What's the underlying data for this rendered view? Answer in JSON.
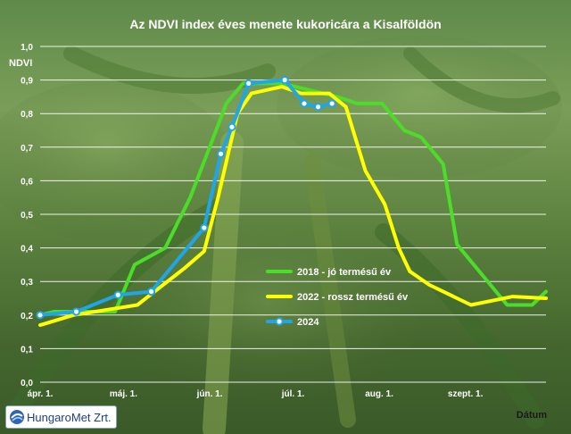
{
  "chart_data": {
    "type": "line",
    "title": "Az NDVI index éves menete kukoricára a Kisalföldön",
    "xlabel": "Dátum",
    "ylabel": "NDVI",
    "ylim": [
      0,
      1.0
    ],
    "yticks": [
      "0,0",
      "0,1",
      "0,2",
      "0,3",
      "0,4",
      "0,5",
      "0,6",
      "0,7",
      "0,8",
      "0,9",
      "1,0"
    ],
    "xticks": [
      {
        "label": "ápr. 1.",
        "day": 0
      },
      {
        "label": "máj. 1.",
        "day": 30
      },
      {
        "label": "jún. 1.",
        "day": 61
      },
      {
        "label": "júl. 1.",
        "day": 91
      },
      {
        "label": "aug. 1.",
        "day": 122
      },
      {
        "label": "szept. 1.",
        "day": 153
      }
    ],
    "xlim": [
      0,
      182
    ],
    "grid": true,
    "legend_position": "lower-right",
    "series": [
      {
        "name": "2018 - jó termésű év",
        "color": "#4cdc2a",
        "markers": false,
        "points": [
          [
            0,
            0.2
          ],
          [
            5,
            0.21
          ],
          [
            27,
            0.21
          ],
          [
            34,
            0.35
          ],
          [
            45,
            0.4
          ],
          [
            54,
            0.55
          ],
          [
            61,
            0.7
          ],
          [
            67,
            0.83
          ],
          [
            73,
            0.89
          ],
          [
            87,
            0.89
          ],
          [
            97,
            0.87
          ],
          [
            107,
            0.85
          ],
          [
            114,
            0.83
          ],
          [
            123,
            0.83
          ],
          [
            131,
            0.75
          ],
          [
            137,
            0.73
          ],
          [
            145,
            0.65
          ],
          [
            150,
            0.41
          ],
          [
            158,
            0.33
          ],
          [
            168,
            0.23
          ],
          [
            177,
            0.23
          ],
          [
            182,
            0.27
          ]
        ]
      },
      {
        "name": "2022 - rossz termésű év",
        "color": "#ffff00",
        "markers": false,
        "points": [
          [
            0,
            0.17
          ],
          [
            12,
            0.2
          ],
          [
            35,
            0.23
          ],
          [
            52,
            0.34
          ],
          [
            59,
            0.39
          ],
          [
            64,
            0.55
          ],
          [
            71,
            0.8
          ],
          [
            76,
            0.86
          ],
          [
            87,
            0.88
          ],
          [
            94,
            0.86
          ],
          [
            104,
            0.86
          ],
          [
            110,
            0.82
          ],
          [
            117,
            0.63
          ],
          [
            124,
            0.53
          ],
          [
            129,
            0.4
          ],
          [
            133,
            0.33
          ],
          [
            140,
            0.29
          ],
          [
            155,
            0.23
          ],
          [
            170,
            0.255
          ],
          [
            182,
            0.25
          ]
        ]
      },
      {
        "name": "2024",
        "color": "#1ea6e8",
        "markers": true,
        "points": [
          [
            0,
            0.2
          ],
          [
            13,
            0.21
          ],
          [
            28,
            0.26
          ],
          [
            40,
            0.27
          ],
          [
            59,
            0.46
          ],
          [
            65,
            0.68
          ],
          [
            69,
            0.76
          ],
          [
            75,
            0.89
          ],
          [
            88,
            0.9
          ],
          [
            95,
            0.83
          ],
          [
            100,
            0.82
          ],
          [
            105,
            0.83
          ]
        ]
      }
    ]
  },
  "logo": {
    "text": "HungaroMet Zrt."
  }
}
